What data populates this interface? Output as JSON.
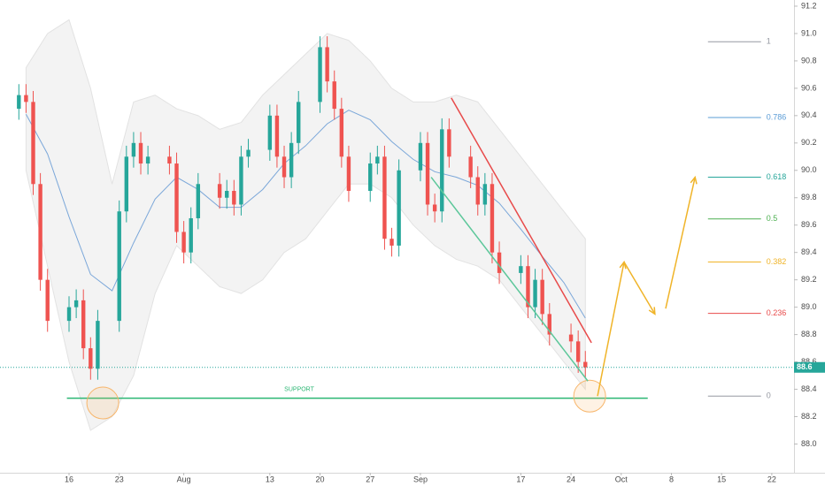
{
  "chart_data": {
    "type": "candlestick",
    "x": [
      9,
      10,
      11,
      12,
      13,
      16,
      17,
      18,
      19,
      20,
      23,
      24,
      25,
      26,
      27,
      30,
      31,
      32,
      33,
      34,
      37,
      38,
      39,
      40,
      41,
      44,
      45,
      46,
      47,
      48,
      51,
      52,
      53,
      54,
      55,
      58,
      59,
      60,
      61,
      62,
      65,
      66,
      67,
      68,
      69,
      72,
      73,
      74,
      75,
      76,
      79,
      80,
      81,
      82,
      83,
      86,
      87,
      88
    ],
    "open": [
      90.45,
      90.55,
      90.5,
      89.9,
      89.2,
      88.9,
      89.0,
      89.05,
      88.7,
      88.55,
      88.9,
      89.7,
      90.1,
      90.2,
      90.05,
      90.1,
      90.05,
      89.55,
      89.4,
      89.65,
      89.9,
      89.8,
      89.85,
      89.75,
      90.1,
      90.15,
      90.4,
      90.1,
      89.95,
      90.2,
      90.5,
      90.9,
      90.65,
      90.45,
      90.1,
      89.85,
      90.05,
      90.1,
      89.5,
      89.45,
      90.0,
      90.2,
      89.75,
      89.7,
      90.3,
      90.1,
      89.95,
      89.75,
      89.9,
      89.4,
      89.25,
      89.3,
      89.0,
      89.2,
      88.95,
      88.8,
      88.75,
      88.6
    ],
    "high": [
      90.63,
      90.63,
      90.58,
      89.98,
      89.28,
      89.08,
      89.13,
      89.13,
      88.78,
      88.98,
      89.78,
      90.18,
      90.28,
      90.28,
      90.18,
      90.18,
      90.13,
      89.63,
      89.73,
      89.98,
      89.98,
      89.93,
      89.93,
      90.18,
      90.23,
      90.48,
      90.48,
      90.18,
      90.28,
      90.58,
      90.98,
      90.98,
      90.73,
      90.53,
      90.18,
      90.13,
      90.18,
      90.18,
      89.58,
      90.08,
      90.28,
      90.28,
      89.83,
      90.38,
      90.38,
      90.18,
      90.03,
      89.98,
      89.98,
      89.48,
      89.38,
      89.38,
      89.28,
      89.28,
      89.03,
      88.88,
      88.83,
      88.68
    ],
    "low": [
      90.37,
      90.42,
      89.82,
      89.12,
      88.82,
      88.82,
      88.92,
      88.62,
      88.47,
      88.47,
      88.82,
      89.62,
      90.02,
      89.97,
      89.97,
      89.97,
      89.47,
      89.32,
      89.32,
      89.57,
      89.72,
      89.72,
      89.67,
      89.67,
      90.02,
      90.07,
      90.02,
      89.87,
      89.87,
      90.12,
      90.42,
      90.57,
      90.37,
      90.02,
      89.77,
      89.77,
      89.97,
      89.42,
      89.37,
      89.37,
      89.92,
      89.67,
      89.62,
      89.62,
      90.02,
      89.87,
      89.67,
      89.67,
      89.32,
      89.17,
      89.17,
      88.92,
      88.92,
      88.87,
      88.72,
      88.67,
      88.52,
      88.48
    ],
    "close": [
      90.55,
      90.5,
      89.9,
      89.2,
      88.9,
      89.0,
      89.05,
      88.7,
      88.55,
      88.9,
      89.7,
      90.1,
      90.2,
      90.05,
      90.1,
      90.05,
      89.55,
      89.4,
      89.65,
      89.9,
      89.8,
      89.85,
      89.75,
      90.1,
      90.15,
      90.4,
      90.1,
      89.95,
      90.2,
      90.5,
      90.9,
      90.65,
      90.45,
      90.1,
      89.85,
      90.05,
      90.1,
      89.5,
      89.45,
      90.0,
      90.2,
      89.75,
      89.7,
      90.3,
      90.1,
      89.95,
      89.75,
      89.9,
      89.4,
      89.25,
      89.3,
      89.0,
      89.2,
      88.95,
      88.8,
      88.75,
      88.6,
      88.56
    ],
    "up_color": "#26a69a",
    "down_color": "#ef5350",
    "xlim": [
      6.37,
      117.1
    ],
    "xticks": [
      16,
      23,
      {
        "value": 32,
        "label": "Aug"
      },
      {
        "value": 44,
        "label": "13"
      },
      {
        "value": 51,
        "label": "20"
      },
      {
        "value": 58,
        "label": "27"
      },
      {
        "value": 65,
        "label": "Sep"
      },
      {
        "value": 79,
        "label": "17"
      },
      {
        "value": 86,
        "label": "24"
      },
      {
        "value": 93,
        "label": "Oct"
      },
      {
        "value": 100,
        "label": "8"
      },
      {
        "value": 107,
        "label": "15"
      },
      {
        "value": 114,
        "label": "22"
      }
    ],
    "ylim": [
      87.79,
      91.245
    ],
    "yticks": [
      {
        "value": 88,
        "label": "88.0"
      },
      88.2,
      88.4,
      88.6,
      88.8,
      {
        "value": 89,
        "label": "89.0"
      },
      89.2,
      89.4,
      89.6,
      89.8,
      {
        "value": 90,
        "label": "90.0"
      },
      90.2,
      90.4,
      90.6,
      90.8,
      {
        "value": 91,
        "label": "91.0"
      },
      91.2
    ],
    "price_line": {
      "value": 88.56,
      "label": "88.6",
      "color": "#26a69a"
    },
    "moving_average": {
      "color": "#7ba7d9",
      "x": [
        10,
        13,
        16,
        19,
        22,
        25,
        28,
        31,
        34,
        37,
        40,
        43,
        46,
        49,
        52,
        55,
        58,
        61,
        64,
        67,
        70,
        73,
        76,
        79,
        82,
        85,
        88
      ],
      "values": [
        90.41,
        90.12,
        89.66,
        89.24,
        89.12,
        89.47,
        89.79,
        89.95,
        89.86,
        89.73,
        89.73,
        89.86,
        90.05,
        90.18,
        90.34,
        90.44,
        90.37,
        90.21,
        90.08,
        89.99,
        89.95,
        89.89,
        89.76,
        89.57,
        89.37,
        89.18,
        88.92
      ],
      "upper": [
        90.75,
        91.0,
        91.1,
        90.6,
        89.9,
        90.5,
        90.55,
        90.45,
        90.4,
        90.3,
        90.35,
        90.55,
        90.7,
        90.85,
        91.0,
        90.95,
        90.8,
        90.6,
        90.5,
        90.5,
        90.55,
        90.5,
        90.3,
        90.1,
        89.9,
        89.7,
        89.5
      ],
      "lower": [
        90.0,
        89.3,
        88.6,
        88.1,
        88.2,
        88.5,
        89.1,
        89.45,
        89.3,
        89.15,
        89.1,
        89.2,
        89.4,
        89.5,
        89.7,
        89.9,
        89.9,
        89.8,
        89.6,
        89.45,
        89.35,
        89.3,
        89.2,
        89.0,
        88.8,
        88.6,
        88.4
      ]
    },
    "support": {
      "label": "SUPPORT",
      "x": [
        15.7,
        96.7
      ],
      "y": 88.335,
      "color": "#2bb673"
    },
    "trendlines": [
      {
        "color": "#e84a4a",
        "x": [
          69.3,
          88.85
        ],
        "y": [
          90.53,
          88.74
        ]
      },
      {
        "color": "#5cc79a",
        "x": [
          66.5,
          88.35
        ],
        "y": [
          89.95,
          88.46
        ]
      }
    ],
    "projection": {
      "color": "#f0b429",
      "x": [
        89.7,
        93.4,
        97.7,
        99.2,
        103.3
      ],
      "y": [
        88.35,
        89.33,
        88.95,
        88.99,
        89.95
      ]
    },
    "circles": {
      "color": "#f7b56a",
      "x": [
        20.7,
        88.6
      ],
      "y": [
        88.3,
        88.35
      ]
    },
    "fibonacci": {
      "x": [
        105.1,
        112.5
      ],
      "levels": [
        {
          "ratio": 1,
          "price": 90.94,
          "color": "#9598a1"
        },
        {
          "ratio": 0.786,
          "price": 90.386,
          "color": "#5b9cd6"
        },
        {
          "ratio": 0.618,
          "price": 89.95,
          "color": "#26a69a"
        },
        {
          "ratio": 0.5,
          "price": 89.645,
          "color": "#4caf50"
        },
        {
          "ratio": 0.382,
          "price": 89.33,
          "color": "#f0b429"
        },
        {
          "ratio": 0.236,
          "price": 88.955,
          "color": "#e84a4a"
        },
        {
          "ratio": 0,
          "price": 88.35,
          "color": "#9598a1"
        }
      ]
    }
  }
}
